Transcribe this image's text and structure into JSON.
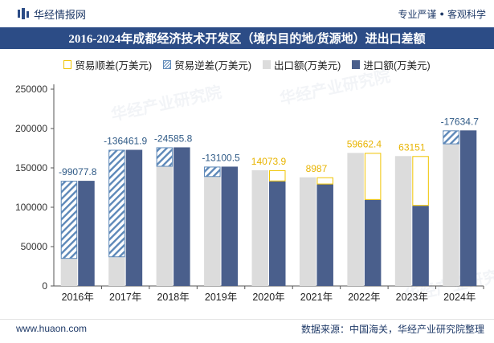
{
  "header": {
    "brand": "华经情报网",
    "tagline_left": "专业严谨",
    "tagline_sep": "●",
    "tagline_right": "客观科学"
  },
  "footer": {
    "url": "www.huaon.com",
    "source": "数据来源：中国海关，华经产业研究院整理"
  },
  "watermark": "华经产业研究院",
  "colors": {
    "title_bg": "#2c4c86",
    "export": "#dcdcdc",
    "import": "#4a5f8c",
    "surplus_border": "#f0c400",
    "deficit_hatch": "#5d88b8",
    "surplus_label": "#e8b400",
    "deficit_label": "#2f5a86"
  },
  "chart_data": {
    "type": "bar",
    "title": "2016-2024年成都经济技术开发区（境内目的地/货源地）进出口差额",
    "categories": [
      "2016年",
      "2017年",
      "2018年",
      "2019年",
      "2020年",
      "2021年",
      "2022年",
      "2023年",
      "2024年"
    ],
    "legend": [
      "贸易顺差(万美元)",
      "贸易逆差(万美元)",
      "出口额(万美元)",
      "进口额(万美元)"
    ],
    "series": [
      {
        "name": "出口额(万美元)",
        "values": [
          34500,
          36500,
          151500,
          138500,
          147000,
          138000,
          169000,
          165000,
          180000
        ]
      },
      {
        "name": "进口额(万美元)",
        "values": [
          133577.8,
          172961.9,
          176085.8,
          151600.5,
          132926.1,
          129013,
          109337.6,
          101849,
          197634.7
        ]
      }
    ],
    "balance": [
      -99077.8,
      -136461.9,
      -24585.8,
      -13100.5,
      14073.9,
      8987,
      59662.4,
      63151,
      -17634.7
    ],
    "balance_labels": [
      "-99077.8",
      "-136461.9",
      "-24585.8",
      "-13100.5",
      "14073.9",
      "8987",
      "59662.4",
      "63151",
      "-17634.7"
    ],
    "yticks": [
      "0",
      "50000",
      "100000",
      "150000",
      "200000",
      "250000"
    ],
    "ylim": [
      0,
      250000
    ],
    "xlabel": "",
    "ylabel": ""
  }
}
